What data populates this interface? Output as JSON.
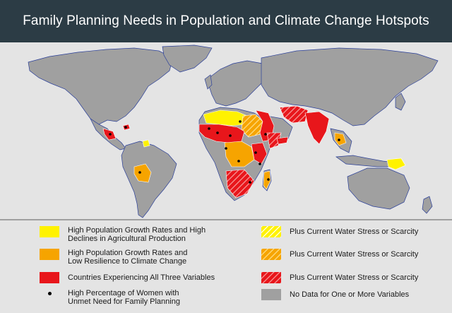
{
  "title": "Family Planning Needs in Population and Climate Change Hotspots",
  "colors": {
    "ocean": "#e4e4e4",
    "land_nodata": "#a0a0a0",
    "yellow": "#fff200",
    "orange": "#f6a400",
    "red": "#e8161b",
    "border": "#ffffff",
    "coast": "#2a3f9a",
    "header_bg": "#2c3c45"
  },
  "legend": {
    "left": [
      {
        "swatch": "yellow",
        "hatched": false,
        "lines": [
          "High Population Growth Rates and High",
          "Declines in Agricultural Production"
        ]
      },
      {
        "swatch": "orange",
        "hatched": false,
        "lines": [
          "High Population Growth Rates and",
          "Low Resilience to Climate Change"
        ]
      },
      {
        "swatch": "red",
        "hatched": false,
        "lines": [
          "Countries Experiencing All Three Variables"
        ]
      },
      {
        "swatch": "dot",
        "hatched": false,
        "lines": [
          "High Percentage of Women with",
          "Unmet Need for Family Planning"
        ]
      }
    ],
    "right": [
      {
        "swatch": "yellow",
        "hatched": true,
        "lines": [
          "Plus Current Water Stress or Scarcity"
        ]
      },
      {
        "swatch": "orange",
        "hatched": true,
        "lines": [
          "Plus Current Water Stress or Scarcity"
        ]
      },
      {
        "swatch": "red",
        "hatched": true,
        "lines": [
          "Plus Current Water Stress or Scarcity"
        ]
      },
      {
        "swatch": "nodata",
        "hatched": false,
        "lines": [
          "No Data for One or More Variables"
        ]
      }
    ]
  }
}
